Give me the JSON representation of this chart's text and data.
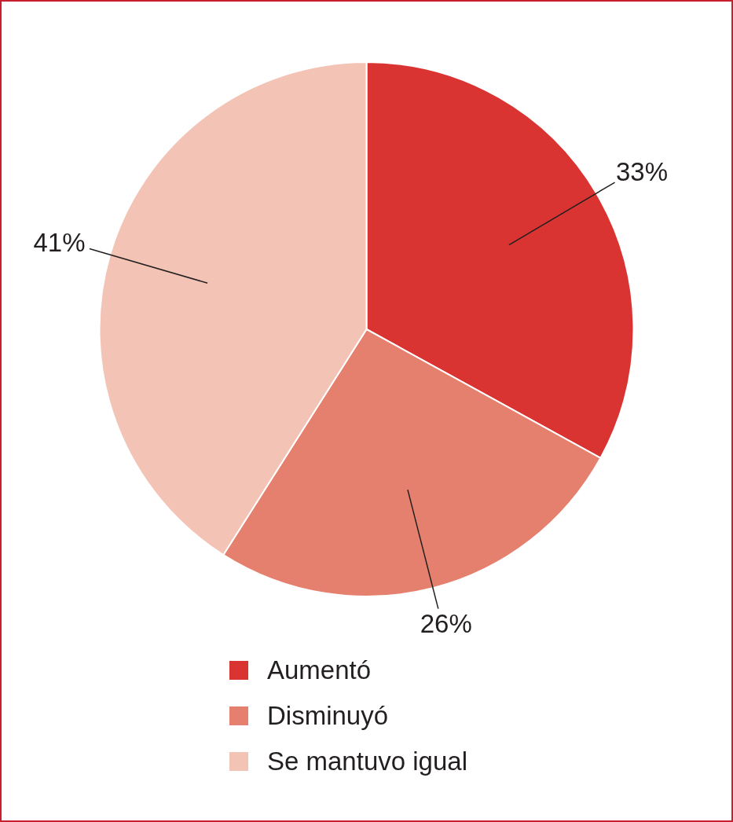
{
  "chart_data": {
    "type": "pie",
    "categories": [
      "Aumentó",
      "Disminuyó",
      "Se mantuvo igual"
    ],
    "values": [
      33,
      26,
      41
    ],
    "colors": [
      "#da3432",
      "#e6806e",
      "#f3c3b5"
    ],
    "value_labels": [
      "33%",
      "26%",
      "41%"
    ],
    "legend": "bottom"
  }
}
